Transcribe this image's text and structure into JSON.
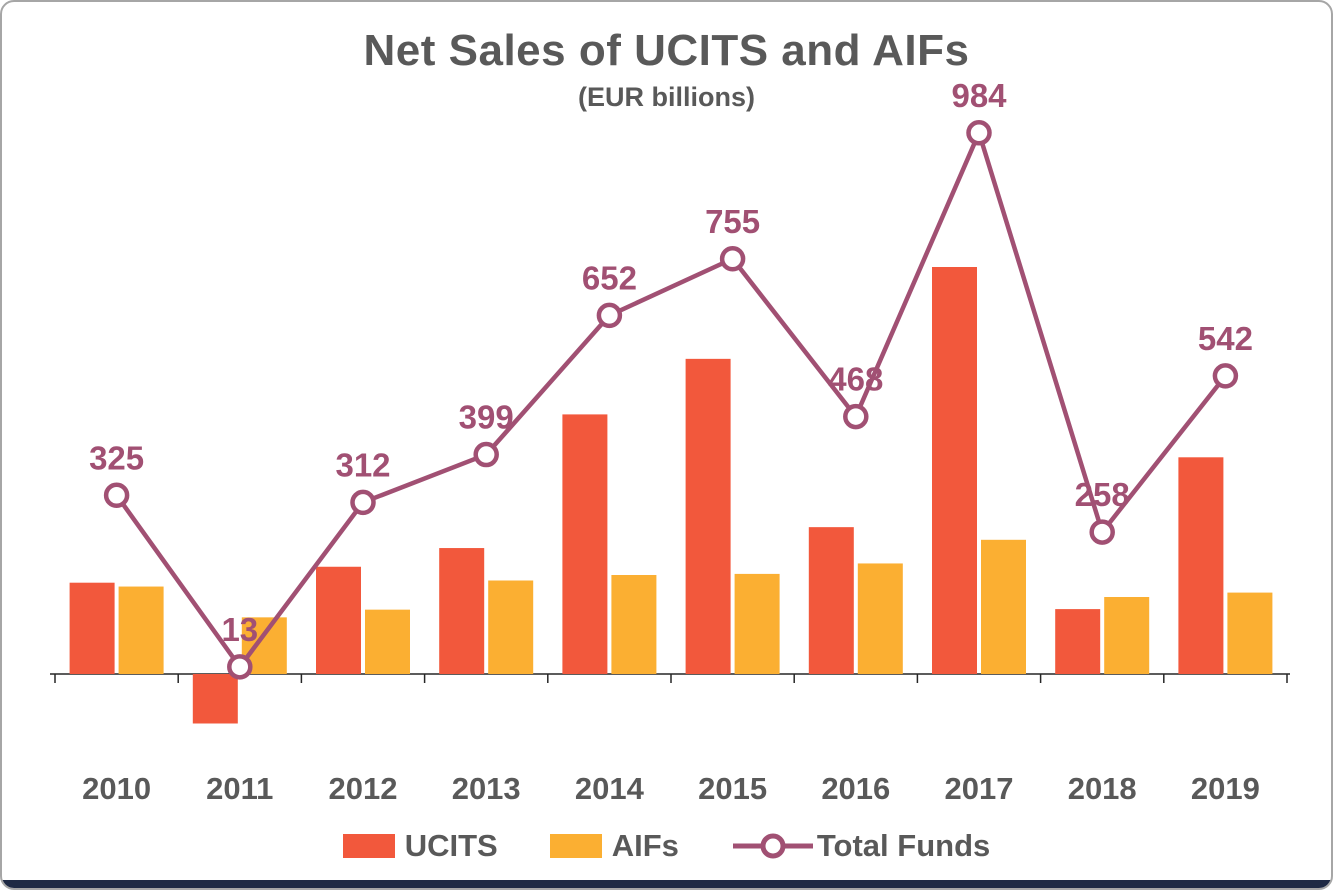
{
  "title": "Net Sales of UCITS and AIFs",
  "subtitle": "(EUR billions)",
  "colors": {
    "ucits_bar": "#F2583C",
    "aifs_bar": "#FBAF32",
    "total_funds_line": "#A15073",
    "text_gray": "#595959",
    "axis": "#262626",
    "frame_border": "#A6A6A6",
    "footer_bar": "#1F2A44"
  },
  "chart_data": {
    "type": "bar",
    "subtype": "bar-and-line-combo",
    "title": "Net Sales of UCITS and AIFs",
    "subtitle": "(EUR billions)",
    "categories": [
      "2010",
      "2011",
      "2012",
      "2013",
      "2014",
      "2015",
      "2016",
      "2017",
      "2018",
      "2019"
    ],
    "series": [
      {
        "name": "UCITS",
        "type": "bar",
        "color": "#F2583C",
        "values": [
          166,
          -90,
          195,
          229,
          472,
          573,
          267,
          740,
          118,
          394
        ]
      },
      {
        "name": "AIFs",
        "type": "bar",
        "color": "#FBAF32",
        "values": [
          159,
          103,
          117,
          170,
          180,
          182,
          201,
          244,
          140,
          148
        ]
      },
      {
        "name": "Total Funds",
        "type": "line",
        "color": "#A15073",
        "marker": "open-circle",
        "values": [
          325,
          13,
          312,
          399,
          652,
          755,
          468,
          984,
          258,
          542
        ],
        "data_labels": [
          "325",
          "13",
          "312",
          "399",
          "652",
          "755",
          "468",
          "984",
          "258",
          "542"
        ]
      }
    ],
    "xlabel": "",
    "ylabel": "",
    "ylim": [
      -130,
      1040
    ],
    "grid": false,
    "y_axis_visible": false,
    "legend_position": "bottom"
  }
}
